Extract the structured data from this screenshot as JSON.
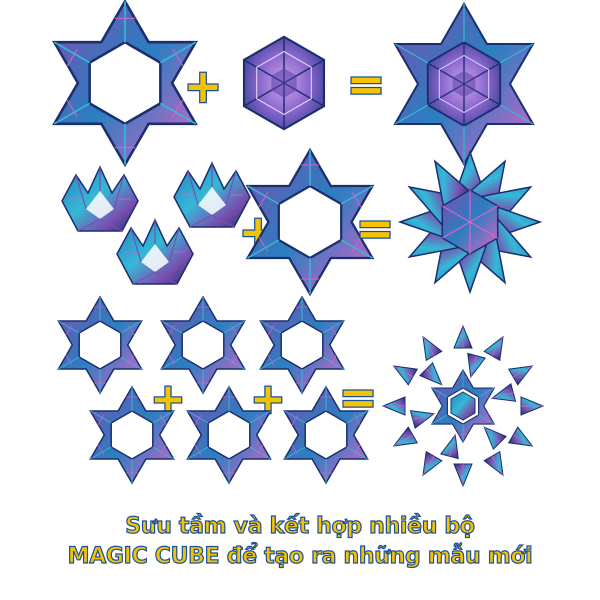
{
  "operators": {
    "plus": "+",
    "equals": "="
  },
  "caption": {
    "line1": "Sưu tầm và kết hợp nhiều bộ",
    "line2": "MAGIC CUBE để tạo ra những mẫu mới"
  },
  "colors": {
    "caption_fill": "#f5c400",
    "caption_outline": "#1a4f9c",
    "operator_fill": "#f5c400",
    "star_dark": "#1b2f6e",
    "star_blue": "#2a7fc0",
    "star_purple": "#7a4fb0",
    "star_cyan": "#35b8d6",
    "star_pink": "#e060c8"
  },
  "pieces": {
    "star_frame": "hexagram-star-frame",
    "hexagon_cube": "hexagon-magic-cube",
    "crown_piece": "crown-shaped-cube",
    "big_star": "assembled-big-star",
    "spiky_star": "assembled-spiky-star",
    "flower": "assembled-flower-pattern"
  }
}
